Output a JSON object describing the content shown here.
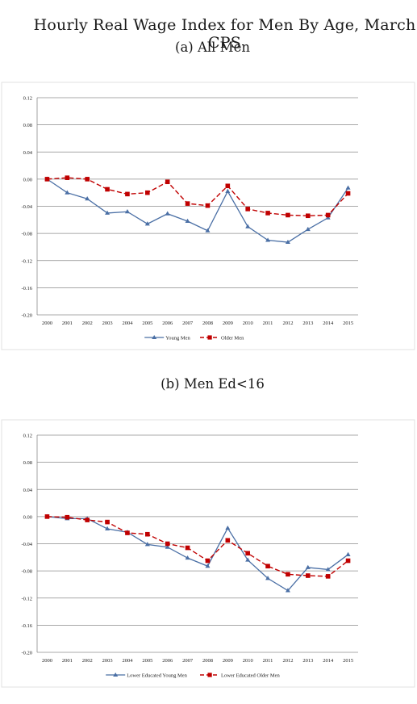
{
  "title": "Hourly Real Wage Index for Men By Age, March CPS",
  "colors": {
    "series1": "#4a6fa5",
    "series2": "#c00000",
    "grid": "#8c8c8c",
    "frame": "#e2e2e2"
  },
  "chart_data": [
    {
      "type": "line",
      "panel_title": "(a) All Men",
      "x": [
        "2000",
        "2001",
        "2002",
        "2003",
        "2004",
        "2005",
        "2006",
        "2007",
        "2008",
        "2009",
        "2010",
        "2011",
        "2012",
        "2013",
        "2014",
        "2015"
      ],
      "ylim": [
        -0.2,
        0.12
      ],
      "yticks": [
        "0.12",
        "0.08",
        "0.04",
        "0.00",
        "-0.04",
        "-0.08",
        "-0.12",
        "-0.16",
        "-0.20"
      ],
      "grid": true,
      "legend_position": "bottom-center",
      "series": [
        {
          "name": "Young Men",
          "marker": "triangle",
          "line": "solid",
          "values": [
            0.0,
            -0.02,
            -0.029,
            -0.05,
            -0.048,
            -0.066,
            -0.051,
            -0.062,
            -0.076,
            -0.018,
            -0.07,
            -0.09,
            -0.093,
            -0.074,
            -0.057,
            -0.013
          ]
        },
        {
          "name": "Older Men",
          "marker": "square",
          "line": "dashed",
          "values": [
            0.0,
            0.002,
            0.0,
            -0.015,
            -0.022,
            -0.02,
            -0.004,
            -0.036,
            -0.039,
            -0.01,
            -0.044,
            -0.05,
            -0.053,
            -0.054,
            -0.053,
            -0.021
          ]
        }
      ]
    },
    {
      "type": "line",
      "panel_title": "(b) Men Ed<16",
      "x": [
        "2000",
        "2001",
        "2002",
        "2003",
        "2004",
        "2005",
        "2006",
        "2007",
        "2008",
        "2009",
        "2010",
        "2011",
        "2012",
        "2013",
        "2014",
        "2015"
      ],
      "ylim": [
        -0.2,
        0.12
      ],
      "yticks": [
        "0.12",
        "0.08",
        "0.04",
        "0.00",
        "-0.04",
        "-0.08",
        "-0.12",
        "-0.16",
        "-0.20"
      ],
      "grid": true,
      "legend_position": "bottom-center",
      "series": [
        {
          "name": "Lower Educated Young Men",
          "marker": "triangle",
          "line": "solid",
          "values": [
            0.0,
            -0.003,
            -0.003,
            -0.018,
            -0.023,
            -0.041,
            -0.045,
            -0.061,
            -0.073,
            -0.017,
            -0.064,
            -0.091,
            -0.109,
            -0.075,
            -0.078,
            -0.056
          ]
        },
        {
          "name": "Lower Educated Older Men",
          "marker": "square",
          "line": "dashed",
          "values": [
            0.0,
            -0.001,
            -0.005,
            -0.008,
            -0.024,
            -0.026,
            -0.04,
            -0.046,
            -0.065,
            -0.035,
            -0.054,
            -0.073,
            -0.085,
            -0.087,
            -0.088,
            -0.065
          ]
        }
      ]
    }
  ]
}
